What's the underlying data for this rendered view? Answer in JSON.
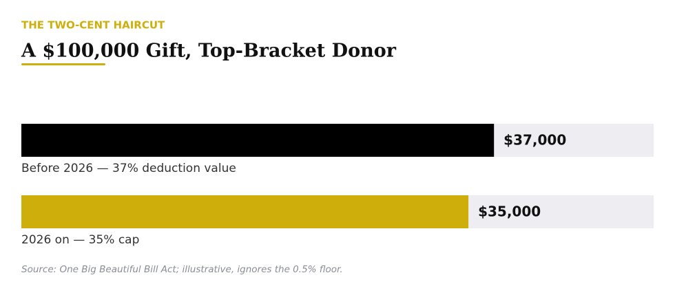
{
  "chart_data": {
    "type": "bar",
    "orientation": "horizontal",
    "kicker": "THE TWO-CENT HAIRCUT",
    "title": "A $100,000 Gift, Top-Bracket Donor",
    "categories": [
      "Before 2026 — 37% deduction value",
      "2026 on — 35% cap"
    ],
    "values": [
      37000,
      35000
    ],
    "value_labels": [
      "$37,000",
      "$35,000"
    ],
    "colors": [
      "#000000",
      "#cdae0b"
    ],
    "track_color": "#eeeef2",
    "xlim": [
      0,
      49500
    ],
    "source": "Source: One Big Beautiful Bill Act; illustrative, ignores the 0.5% floor."
  }
}
